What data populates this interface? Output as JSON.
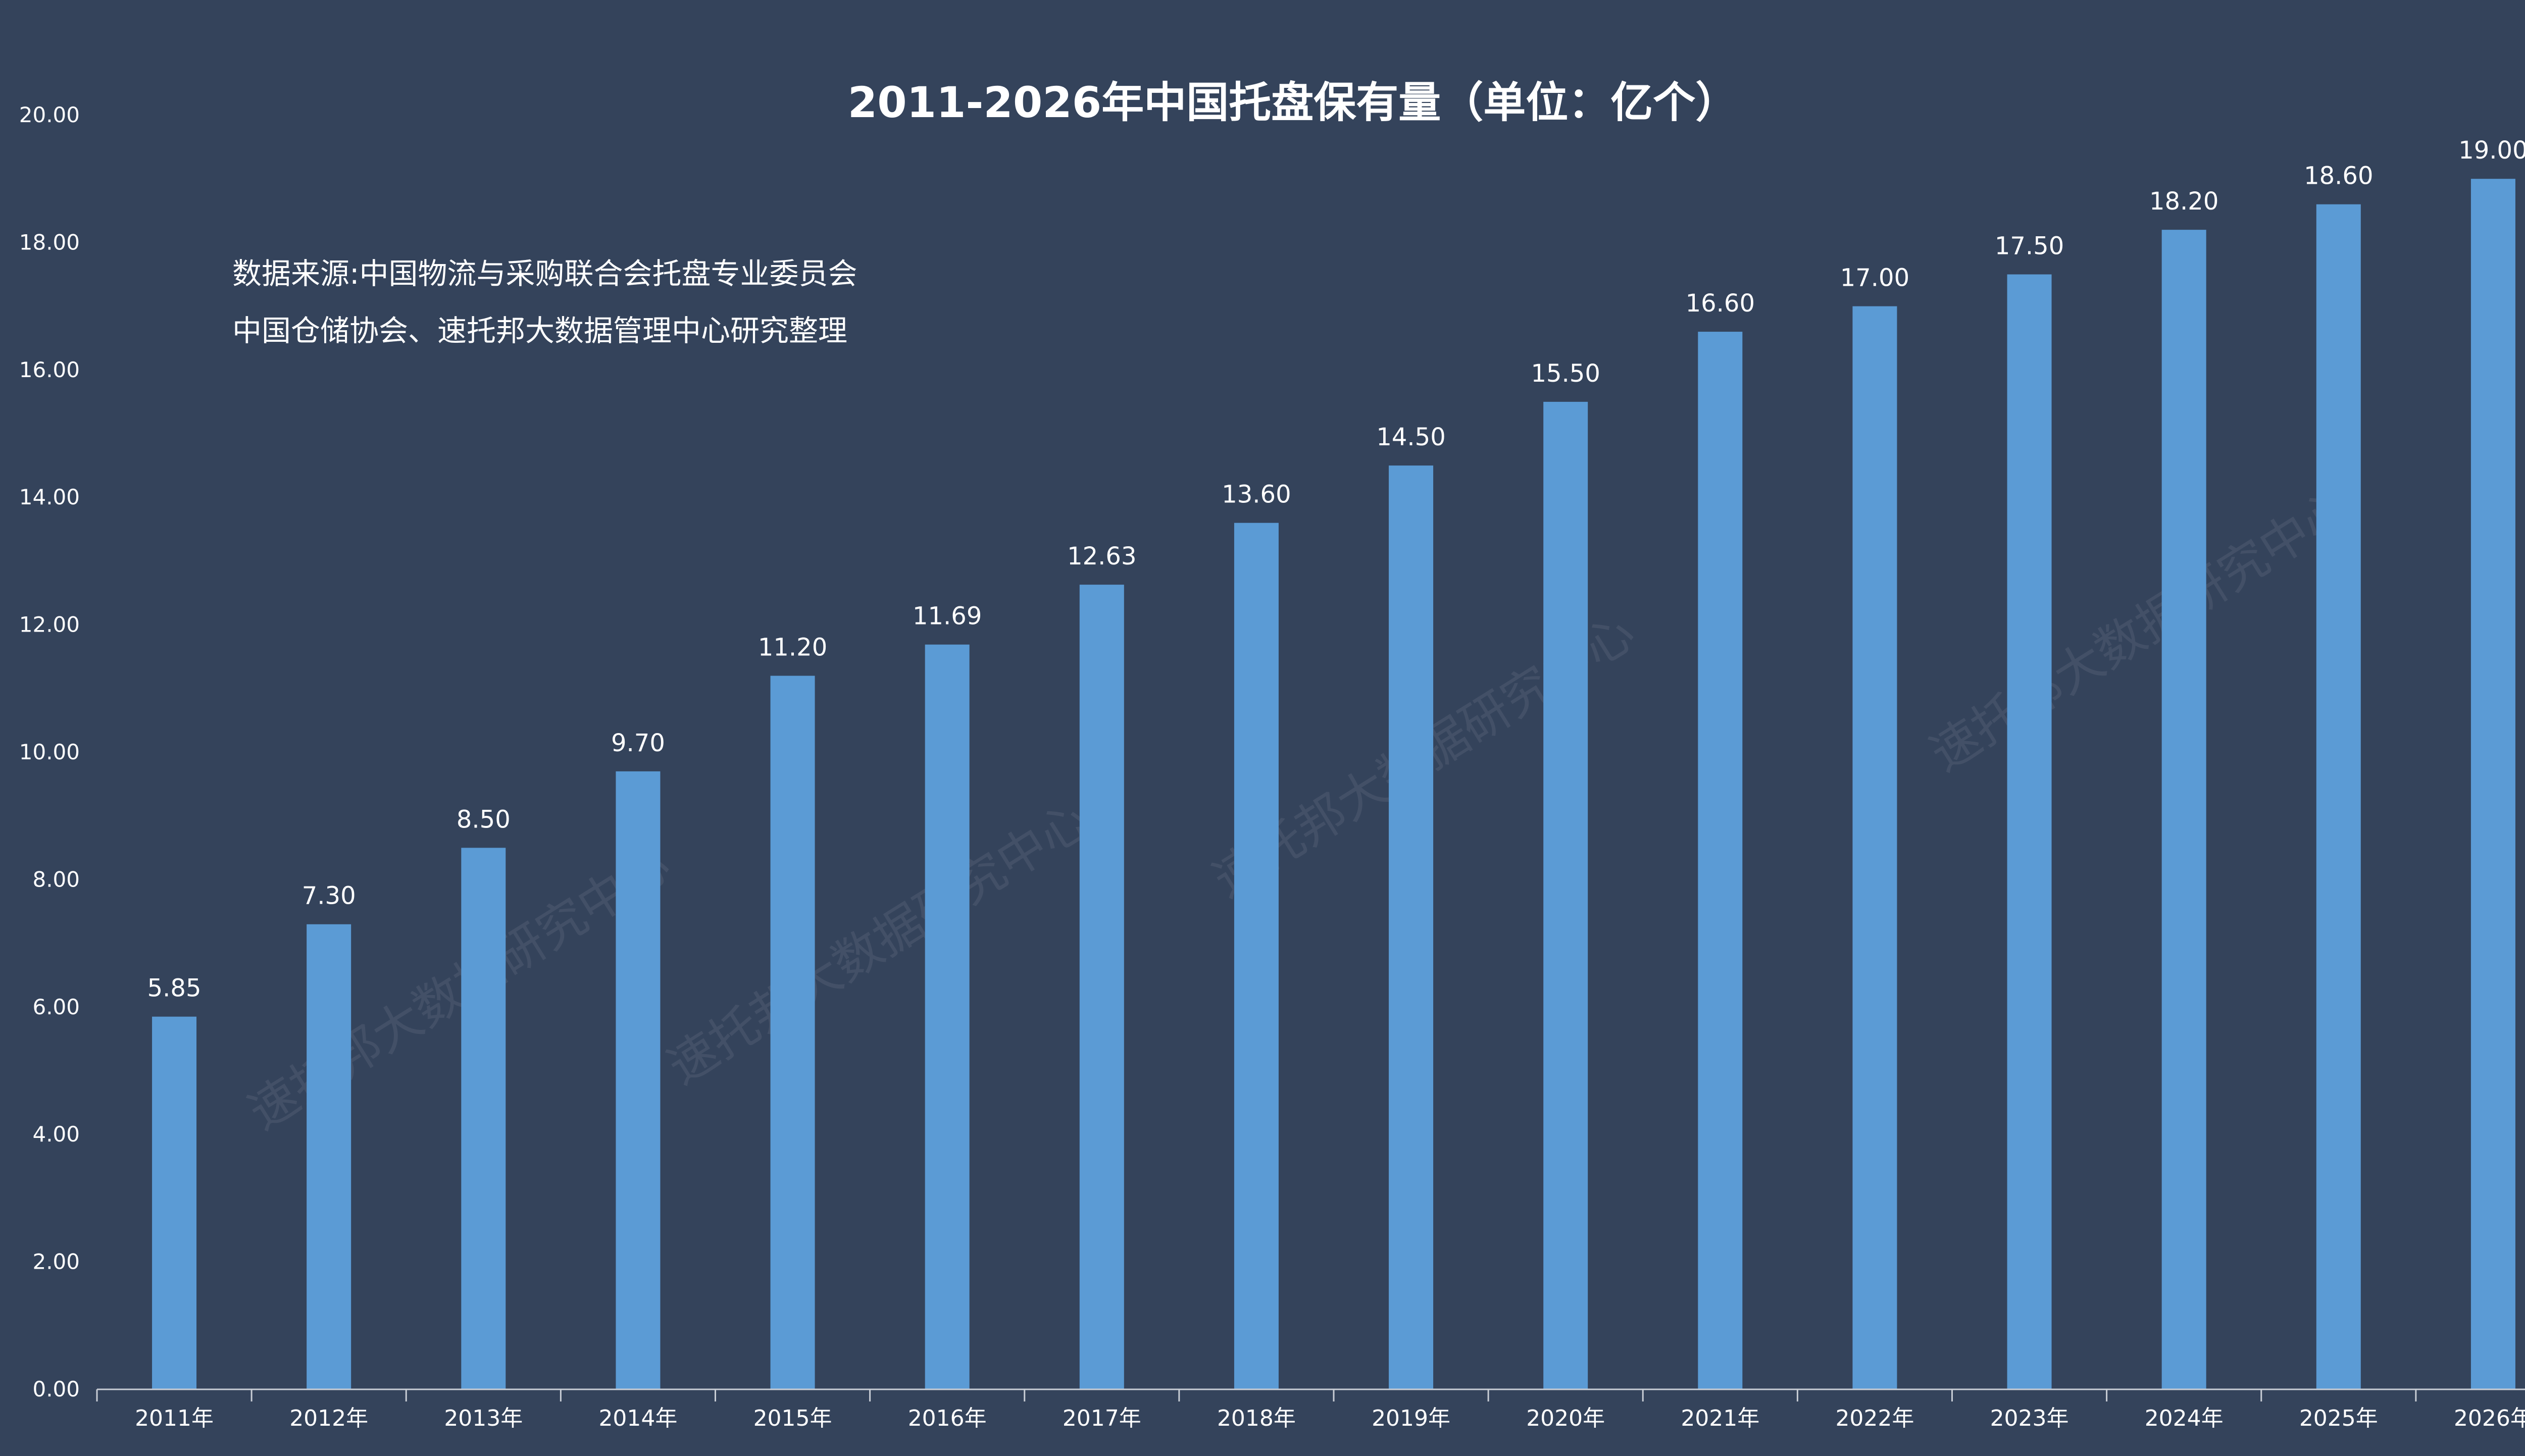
{
  "chart_data": {
    "type": "bar",
    "title": "2011-2026年中国托盘保有量（单位：亿个）",
    "categories": [
      "2011年",
      "2012年",
      "2013年",
      "2014年",
      "2015年",
      "2016年",
      "2017年",
      "2018年",
      "2019年",
      "2020年",
      "2021年",
      "2022年",
      "2023年",
      "2024年",
      "2025年",
      "2026年"
    ],
    "values": [
      5.85,
      7.3,
      8.5,
      9.7,
      11.2,
      11.69,
      12.63,
      13.6,
      14.5,
      15.5,
      16.6,
      17.0,
      17.5,
      18.2,
      18.6,
      19.0
    ],
    "data_labels": [
      "5.85",
      "7.30",
      "8.50",
      "9.70",
      "11.20",
      "11.69",
      "12.63",
      "13.60",
      "14.50",
      "15.50",
      "16.60",
      "17.00",
      "17.50",
      "18.20",
      "18.60",
      "19.00"
    ],
    "ylim": [
      0,
      20
    ],
    "yticks": [
      "0.00",
      "2.00",
      "4.00",
      "6.00",
      "8.00",
      "10.00",
      "12.00",
      "14.00",
      "16.00",
      "18.00",
      "20.00"
    ],
    "xlabel": "",
    "ylabel": "",
    "grid": false,
    "annotations": [
      "数据来源:中国物流与采购联合会托盘专业委员会",
      "中国仓储协会、速托邦大数据管理中心研究整理"
    ],
    "watermark": "速托邦大数据研究中心"
  },
  "colors": {
    "background": "#34435b",
    "bar": "#5b9bd5",
    "text": "#ffffff",
    "axis": "#c8cdd5"
  }
}
